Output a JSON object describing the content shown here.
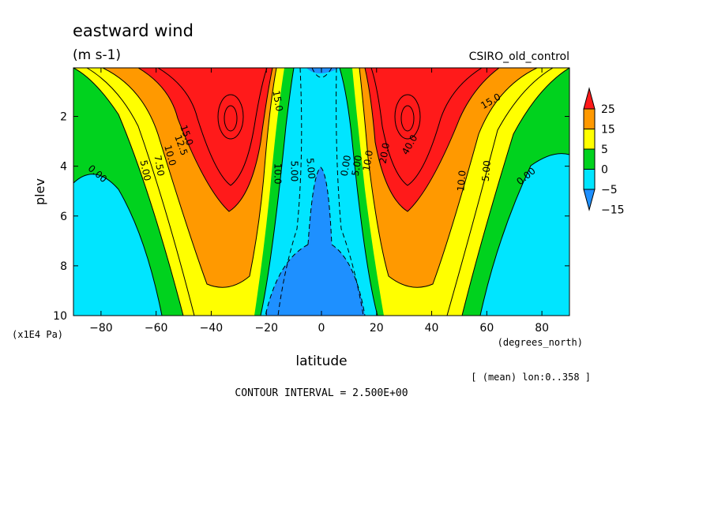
{
  "chart_data": {
    "type": "contour",
    "title": "eastward wind",
    "units": "(m s-1)",
    "dataset": "CSIRO_old_control",
    "xlabel": "latitude",
    "xunits": "(degrees_north)",
    "ylabel": "plev",
    "yunits": "(x1E4 Pa)",
    "xlim": [
      -90,
      90
    ],
    "ylim": [
      10,
      0.05
    ],
    "xticks": [
      -80,
      -60,
      -40,
      -20,
      0,
      20,
      40,
      60,
      80
    ],
    "xtick_labels": [
      "−80",
      "−60",
      "−40",
      "−20",
      "0",
      "20",
      "40",
      "60",
      "80"
    ],
    "yticks": [
      2,
      4,
      6,
      8,
      10
    ],
    "ytick_labels": [
      "2",
      "4",
      "6",
      "8",
      "10"
    ],
    "contour_interval_text": "CONTOUR INTERVAL = 2.500E+00",
    "averaging_note": "[ (mean) lon:0..358 ]",
    "colorbar": {
      "colors": [
        "#1e90ff",
        "#00e5ff",
        "#00d21e",
        "#ffff00",
        "#ff9900",
        "#ff1a1a"
      ],
      "labels": [
        "25",
        "15",
        "5",
        "0",
        "−5",
        "−15"
      ]
    },
    "contour_labels": [
      {
        "text": "0.00",
        "lat": -82,
        "p": 4.4,
        "rot": 40
      },
      {
        "text": "5.00",
        "lat": -65,
        "p": 4.2,
        "rot": 78
      },
      {
        "text": "7.50",
        "lat": -60,
        "p": 4.0,
        "rot": 80
      },
      {
        "text": "10.0",
        "lat": -56,
        "p": 3.6,
        "rot": 75
      },
      {
        "text": "12.5",
        "lat": -52,
        "p": 3.2,
        "rot": 70
      },
      {
        "text": "15.0",
        "lat": -50,
        "p": 2.8,
        "rot": 70
      },
      {
        "text": "10.0",
        "lat": -17,
        "p": 4.3,
        "rot": 90
      },
      {
        "text": "5.00",
        "lat": -11,
        "p": 4.2,
        "rot": 90
      },
      {
        "text": "5.00",
        "lat": -5,
        "p": 4.1,
        "rot": 85
      },
      {
        "text": "15.0",
        "lat": -17,
        "p": 1.4,
        "rot": 80
      },
      {
        "text": "0.00",
        "lat": 10,
        "p": 4.0,
        "rot": -80
      },
      {
        "text": "5.00",
        "lat": 14,
        "p": 4.0,
        "rot": -80
      },
      {
        "text": "10.0",
        "lat": 18,
        "p": 3.8,
        "rot": -80
      },
      {
        "text": "20.0",
        "lat": 24,
        "p": 3.5,
        "rot": -80
      },
      {
        "text": "40.0",
        "lat": 33,
        "p": 3.2,
        "rot": -60
      },
      {
        "text": "10.0",
        "lat": 52,
        "p": 4.6,
        "rot": -85
      },
      {
        "text": "5.00",
        "lat": 61,
        "p": 4.2,
        "rot": -85
      },
      {
        "text": "0.00",
        "lat": 75,
        "p": 4.5,
        "rot": -40
      },
      {
        "text": "15.0",
        "lat": 62,
        "p": 1.5,
        "rot": -30
      }
    ]
  }
}
